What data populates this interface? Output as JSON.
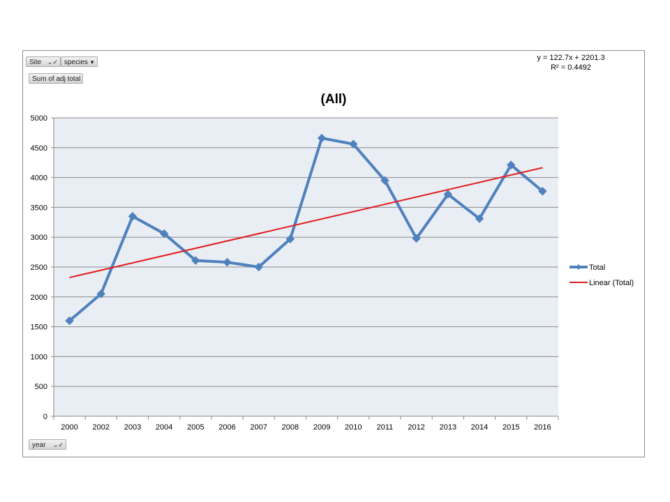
{
  "pivot": {
    "site_label": "Site",
    "species_label": "species",
    "value_label": "Sum of adj total",
    "year_label": "year",
    "filter_icon": "filter-check-icon",
    "dropdown_icon": "dropdown-arrow-icon"
  },
  "trendline": {
    "equation": "y = 122.7x + 2201.3",
    "r2": "R² = 0.4492"
  },
  "chart_data": {
    "type": "line",
    "title": "(All)",
    "categories": [
      "2000",
      "2002",
      "2003",
      "2004",
      "2005",
      "2006",
      "2007",
      "2008",
      "2009",
      "2010",
      "2011",
      "2012",
      "2013",
      "2014",
      "2015",
      "2016"
    ],
    "series": [
      {
        "name": "Total",
        "color": "#4f81bd",
        "marker": "diamond",
        "values": [
          1600,
          2050,
          3350,
          3060,
          2610,
          2580,
          2500,
          2970,
          4660,
          4560,
          3950,
          2980,
          3720,
          3310,
          4210,
          3770
        ]
      },
      {
        "name": "Linear (Total)",
        "color": "#e31a1c",
        "type": "trendline",
        "slope": 122.7,
        "intercept": 2201.3
      }
    ],
    "yticks": [
      0,
      500,
      1000,
      1500,
      2000,
      2500,
      3000,
      3500,
      4000,
      4500,
      5000
    ],
    "ylim": [
      0,
      5000
    ],
    "xlabel": "",
    "ylabel": "",
    "grid": true,
    "legend": "right"
  }
}
